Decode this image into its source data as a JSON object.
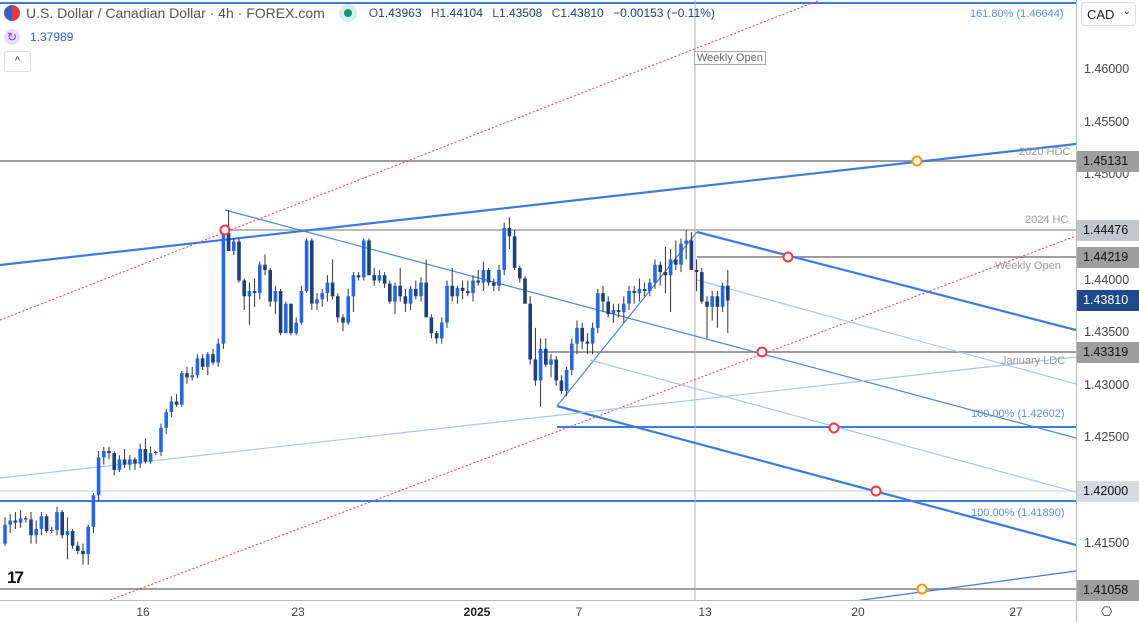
{
  "header": {
    "title": "U.S. Dollar / Canadian Dollar · 4h · FOREX.com",
    "status_color": "#089981",
    "ohlc": {
      "o_label": "O",
      "o": "1.43963",
      "h_label": "H",
      "h": "1.44104",
      "l_label": "L",
      "l": "1.43508",
      "c_label": "C",
      "c": "1.43810",
      "change": "−0.00153 (−0.11%)"
    }
  },
  "indicator": {
    "value": "1.37989",
    "icon": "refresh-icon"
  },
  "collapse_label": "^",
  "currency": "CAD",
  "colors": {
    "up": "#2166f5",
    "down": "#1c3f80",
    "wick": "#333333",
    "trend": "#3d7ae0",
    "red": "#f23645",
    "current": "#1e4a8c"
  },
  "annotations": {
    "fib_top": "161.80% (1.46644)",
    "hdc": "2020 HDC",
    "hc": "2024 HC",
    "weekly_open": "Weekly Open",
    "jan_ldc": "January LDC",
    "fib_100a": "100.00% (1.42602)",
    "fib_100b": "100.00% (1.41890)",
    "vline_label": "Weekly Open"
  },
  "chart_data": {
    "type": "candlestick",
    "title": "U.S. Dollar / Canadian Dollar · 4h · FOREX.com",
    "ylim": [
      1.4095,
      1.4665
    ],
    "y_ticks": [
      "1.46000",
      "1.45500",
      "1.45000",
      "1.44000",
      "1.43500",
      "1.43000",
      "1.42500",
      "1.41500"
    ],
    "price_labels": [
      {
        "value": "1.45131",
        "bg": "#9e9e9e",
        "fg": "#111"
      },
      {
        "value": "1.44476",
        "bg": "#c3c6cc",
        "fg": "#111"
      },
      {
        "value": "1.44219",
        "bg": "#9e9e9e",
        "fg": "#111"
      },
      {
        "value": "1.43810",
        "bg": "#1e4a8c",
        "fg": "#fff"
      },
      {
        "value": "1.43319",
        "bg": "#9e9e9e",
        "fg": "#111"
      },
      {
        "value": "1.42000",
        "bg": "#d6d9e0",
        "fg": "#111"
      },
      {
        "value": "1.41058",
        "bg": "#9e9e9e",
        "fg": "#111"
      }
    ],
    "x_ticks": [
      {
        "label": "16",
        "bold": false
      },
      {
        "label": "23",
        "bold": false
      },
      {
        "label": "2025",
        "bold": true
      },
      {
        "label": "7",
        "bold": false
      },
      {
        "label": "13",
        "bold": false
      },
      {
        "label": "20",
        "bold": false
      },
      {
        "label": "27",
        "bold": false
      }
    ],
    "candles": [
      [
        1.415,
        1.4175,
        1.4148,
        1.4168
      ],
      [
        1.4168,
        1.4178,
        1.416,
        1.4172
      ],
      [
        1.4172,
        1.418,
        1.4164,
        1.417
      ],
      [
        1.417,
        1.4182,
        1.4165,
        1.4174
      ],
      [
        1.4174,
        1.4176,
        1.417,
        1.4173
      ],
      [
        1.4173,
        1.418,
        1.415,
        1.4158
      ],
      [
        1.4158,
        1.4172,
        1.415,
        1.4164
      ],
      [
        1.4164,
        1.418,
        1.4158,
        1.4176
      ],
      [
        1.4176,
        1.4178,
        1.416,
        1.4162
      ],
      [
        1.4162,
        1.4166,
        1.416,
        1.4163
      ],
      [
        1.4163,
        1.4185,
        1.4158,
        1.418
      ],
      [
        1.418,
        1.4182,
        1.4155,
        1.4158
      ],
      [
        1.4158,
        1.4175,
        1.4135,
        1.4162
      ],
      [
        1.4162,
        1.4164,
        1.4145,
        1.4148
      ],
      [
        1.4148,
        1.4152,
        1.414,
        1.4143
      ],
      [
        1.4143,
        1.415,
        1.413,
        1.414
      ],
      [
        1.414,
        1.4168,
        1.413,
        1.4166
      ],
      [
        1.4166,
        1.4198,
        1.416,
        1.4196
      ],
      [
        1.4196,
        1.4238,
        1.419,
        1.4232
      ],
      [
        1.4232,
        1.4242,
        1.4225,
        1.4238
      ],
      [
        1.4238,
        1.4242,
        1.423,
        1.4236
      ],
      [
        1.4236,
        1.4238,
        1.4215,
        1.422
      ],
      [
        1.422,
        1.4234,
        1.4218,
        1.423
      ],
      [
        1.423,
        1.424,
        1.4222,
        1.4225
      ],
      [
        1.4225,
        1.4234,
        1.422,
        1.423
      ],
      [
        1.423,
        1.4232,
        1.422,
        1.4226
      ],
      [
        1.4226,
        1.4245,
        1.4222,
        1.424
      ],
      [
        1.424,
        1.425,
        1.4226,
        1.4228
      ],
      [
        1.4228,
        1.4242,
        1.4226,
        1.4236
      ],
      [
        1.4236,
        1.4238,
        1.4234,
        1.4237
      ],
      [
        1.4237,
        1.4264,
        1.4233,
        1.426
      ],
      [
        1.426,
        1.4278,
        1.4254,
        1.4275
      ],
      [
        1.4275,
        1.429,
        1.427,
        1.4285
      ],
      [
        1.4285,
        1.4292,
        1.428,
        1.4282
      ],
      [
        1.4282,
        1.4314,
        1.428,
        1.4312
      ],
      [
        1.4312,
        1.4318,
        1.4302,
        1.4308
      ],
      [
        1.4308,
        1.4318,
        1.4305,
        1.431
      ],
      [
        1.431,
        1.433,
        1.4307,
        1.4326
      ],
      [
        1.4326,
        1.433,
        1.4315,
        1.4318
      ],
      [
        1.4318,
        1.4332,
        1.431,
        1.433
      ],
      [
        1.433,
        1.4335,
        1.432,
        1.4322
      ],
      [
        1.4322,
        1.4345,
        1.4318,
        1.434
      ],
      [
        1.434,
        1.4447,
        1.4335,
        1.4445
      ],
      [
        1.4445,
        1.4467,
        1.4428,
        1.4428
      ],
      [
        1.4428,
        1.444,
        1.4424,
        1.4437
      ],
      [
        1.4437,
        1.444,
        1.4398,
        1.44
      ],
      [
        1.44,
        1.4402,
        1.4372,
        1.4385
      ],
      [
        1.4385,
        1.4398,
        1.4358,
        1.439
      ],
      [
        1.439,
        1.4402,
        1.4375,
        1.4388
      ],
      [
        1.4388,
        1.4418,
        1.4382,
        1.4415
      ],
      [
        1.4415,
        1.4425,
        1.4405,
        1.441
      ],
      [
        1.441,
        1.4412,
        1.4375,
        1.438
      ],
      [
        1.438,
        1.4395,
        1.4368,
        1.439
      ],
      [
        1.439,
        1.4392,
        1.4348,
        1.435
      ],
      [
        1.435,
        1.438,
        1.435,
        1.4378
      ],
      [
        1.4378,
        1.4378,
        1.4348,
        1.435
      ],
      [
        1.435,
        1.4365,
        1.4348,
        1.436
      ],
      [
        1.436,
        1.4395,
        1.4358,
        1.439
      ],
      [
        1.439,
        1.444,
        1.4388,
        1.4438
      ],
      [
        1.4438,
        1.444,
        1.4372,
        1.4378
      ],
      [
        1.4378,
        1.4388,
        1.4372,
        1.4382
      ],
      [
        1.4382,
        1.4392,
        1.4375,
        1.4388
      ],
      [
        1.4388,
        1.4405,
        1.438,
        1.4398
      ],
      [
        1.4398,
        1.442,
        1.4382,
        1.4385
      ],
      [
        1.4385,
        1.4388,
        1.436,
        1.4365
      ],
      [
        1.4365,
        1.4368,
        1.4352,
        1.436
      ],
      [
        1.436,
        1.4392,
        1.4358,
        1.4385
      ],
      [
        1.4385,
        1.4408,
        1.437,
        1.4405
      ],
      [
        1.4405,
        1.4408,
        1.44,
        1.4403
      ],
      [
        1.4403,
        1.444,
        1.44,
        1.4438
      ],
      [
        1.4438,
        1.444,
        1.4405,
        1.4405
      ],
      [
        1.4405,
        1.4412,
        1.4395,
        1.44
      ],
      [
        1.44,
        1.441,
        1.4398,
        1.4405
      ],
      [
        1.4405,
        1.4408,
        1.4393,
        1.4397
      ],
      [
        1.4397,
        1.44,
        1.4378,
        1.438
      ],
      [
        1.438,
        1.4398,
        1.4368,
        1.4395
      ],
      [
        1.4395,
        1.4412,
        1.438,
        1.4385
      ],
      [
        1.4385,
        1.4392,
        1.437,
        1.4378
      ],
      [
        1.4378,
        1.4395,
        1.4372,
        1.4392
      ],
      [
        1.4392,
        1.44,
        1.4382,
        1.4385
      ],
      [
        1.4385,
        1.4403,
        1.438,
        1.4398
      ],
      [
        1.4398,
        1.442,
        1.4365,
        1.4365
      ],
      [
        1.4365,
        1.4368,
        1.4345,
        1.435
      ],
      [
        1.435,
        1.4352,
        1.434,
        1.4345
      ],
      [
        1.4345,
        1.4365,
        1.434,
        1.436
      ],
      [
        1.436,
        1.44,
        1.4355,
        1.4395
      ],
      [
        1.4395,
        1.4412,
        1.438,
        1.4385
      ],
      [
        1.4385,
        1.4395,
        1.4378,
        1.4393
      ],
      [
        1.4393,
        1.44,
        1.4382,
        1.439
      ],
      [
        1.439,
        1.44,
        1.4385,
        1.4388
      ],
      [
        1.4388,
        1.4405,
        1.438,
        1.44
      ],
      [
        1.44,
        1.441,
        1.4395,
        1.4398
      ],
      [
        1.4398,
        1.4418,
        1.439,
        1.441
      ],
      [
        1.441,
        1.4412,
        1.4395,
        1.4398
      ],
      [
        1.4398,
        1.4402,
        1.439,
        1.4395
      ],
      [
        1.4395,
        1.4415,
        1.439,
        1.441
      ],
      [
        1.441,
        1.4455,
        1.4405,
        1.445
      ],
      [
        1.445,
        1.446,
        1.443,
        1.4442
      ],
      [
        1.4442,
        1.4448,
        1.441,
        1.4412
      ],
      [
        1.4412,
        1.4414,
        1.4398,
        1.4402
      ],
      [
        1.4402,
        1.4404,
        1.4378,
        1.4378
      ],
      [
        1.4378,
        1.4385,
        1.432,
        1.4325
      ],
      [
        1.4325,
        1.4355,
        1.43,
        1.4305
      ],
      [
        1.4305,
        1.4345,
        1.428,
        1.4335
      ],
      [
        1.4335,
        1.4345,
        1.4318,
        1.432
      ],
      [
        1.432,
        1.433,
        1.4308,
        1.4325
      ],
      [
        1.4325,
        1.4328,
        1.43,
        1.4305
      ],
      [
        1.4305,
        1.431,
        1.4292,
        1.4295
      ],
      [
        1.4295,
        1.4318,
        1.429,
        1.4315
      ],
      [
        1.4315,
        1.4345,
        1.431,
        1.434
      ],
      [
        1.434,
        1.4362,
        1.433,
        1.4355
      ],
      [
        1.4355,
        1.436,
        1.4335,
        1.4342
      ],
      [
        1.4342,
        1.435,
        1.433,
        1.434
      ],
      [
        1.434,
        1.436,
        1.433,
        1.4355
      ],
      [
        1.4355,
        1.4392,
        1.435,
        1.4388
      ],
      [
        1.4388,
        1.4395,
        1.437,
        1.438
      ],
      [
        1.438,
        1.4385,
        1.4365,
        1.4368
      ],
      [
        1.4368,
        1.4378,
        1.436,
        1.4372
      ],
      [
        1.4372,
        1.4378,
        1.4365,
        1.437
      ],
      [
        1.437,
        1.4385,
        1.436,
        1.4378
      ],
      [
        1.4378,
        1.4395,
        1.4372,
        1.439
      ],
      [
        1.439,
        1.4395,
        1.4378,
        1.4388
      ],
      [
        1.4388,
        1.4402,
        1.438,
        1.4392
      ],
      [
        1.4392,
        1.4398,
        1.4385,
        1.439
      ],
      [
        1.439,
        1.4402,
        1.4385,
        1.4398
      ],
      [
        1.4398,
        1.442,
        1.4392,
        1.4415
      ],
      [
        1.4415,
        1.4418,
        1.4395,
        1.4408
      ],
      [
        1.4408,
        1.4432,
        1.4388,
        1.4405
      ],
      [
        1.4405,
        1.443,
        1.437,
        1.442
      ],
      [
        1.442,
        1.4438,
        1.441,
        1.4415
      ],
      [
        1.4415,
        1.444,
        1.4408,
        1.4435
      ],
      [
        1.4435,
        1.4448,
        1.442,
        1.4438
      ],
      [
        1.4438,
        1.4446,
        1.441,
        1.441
      ],
      [
        1.441,
        1.442,
        1.439,
        1.4408
      ],
      [
        1.4408,
        1.4412,
        1.4378,
        1.438
      ],
      [
        1.438,
        1.4385,
        1.4345,
        1.4375
      ],
      [
        1.4375,
        1.439,
        1.4362,
        1.4385
      ],
      [
        1.4385,
        1.439,
        1.4355,
        1.4375
      ],
      [
        1.4375,
        1.4398,
        1.437,
        1.4395
      ],
      [
        1.4395,
        1.441,
        1.435,
        1.4381
      ]
    ]
  }
}
